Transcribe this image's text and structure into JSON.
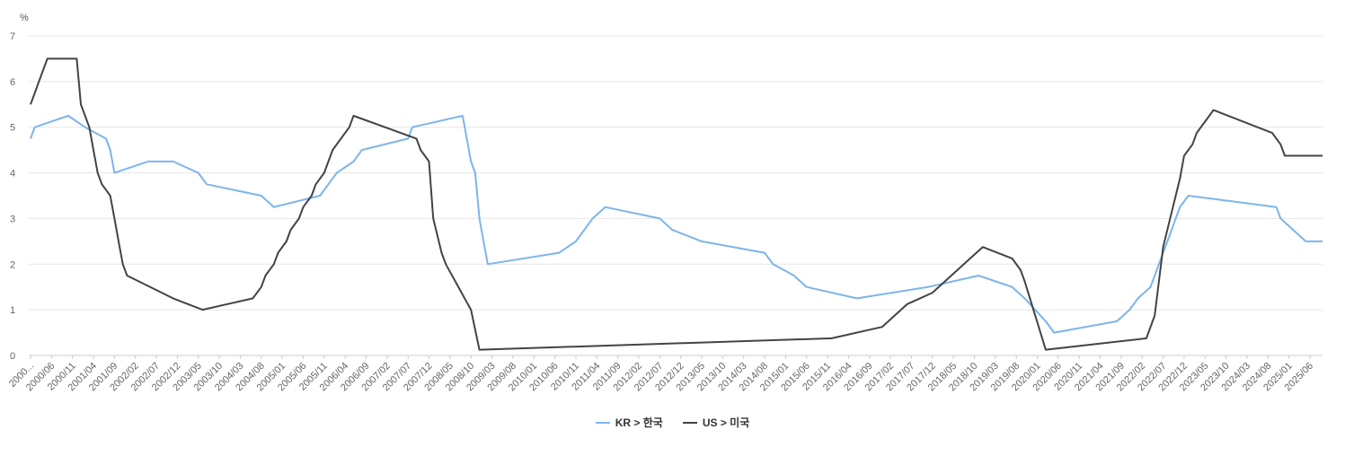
{
  "chart_data": {
    "type": "line",
    "unit_label": "%",
    "ylim": [
      0,
      7
    ],
    "y_ticks": [
      "0",
      "1",
      "2",
      "3",
      "4",
      "5",
      "6",
      "7"
    ],
    "grid": true,
    "legend_position": "bottom-center",
    "x_tick_labels": [
      "2000...",
      "2000/06",
      "2000/11",
      "2001/04",
      "2001/09",
      "2002/02",
      "2002/07",
      "2002/12",
      "2003/05",
      "2003/10",
      "2004/03",
      "2004/08",
      "2005/01",
      "2005/06",
      "2005/11",
      "2006/04",
      "2006/09",
      "2007/02",
      "2007/07",
      "2007/12",
      "2008/05",
      "2008/10",
      "2009/03",
      "2009/08",
      "2010/01",
      "2010/06",
      "2010/11",
      "2011/04",
      "2011/09",
      "2012/02",
      "2012/07",
      "2012/12",
      "2013/05",
      "2013/10",
      "2014/03",
      "2014/08",
      "2015/01",
      "2015/06",
      "2015/11",
      "2016/04",
      "2016/09",
      "2017/02",
      "2017/07",
      "2017/12",
      "2018/05",
      "2018/10",
      "2019/03",
      "2019/08",
      "2020/01",
      "2020/06",
      "2020/11",
      "2021/04",
      "2021/09",
      "2022/02",
      "2022/07",
      "2022/12",
      "2023/05",
      "2023/10",
      "2024/03",
      "2024/08",
      "2025/01",
      "2025/06"
    ],
    "series": [
      {
        "name": "KR > 한국",
        "color": "#7cb5ec",
        "points": [
          [
            "2000-01",
            4.75
          ],
          [
            "2000-02",
            5.0
          ],
          [
            "2000-10",
            5.25
          ],
          [
            "2001-02",
            5.0
          ],
          [
            "2001-07",
            4.75
          ],
          [
            "2001-08",
            4.5
          ],
          [
            "2001-09",
            4.0
          ],
          [
            "2002-05",
            4.25
          ],
          [
            "2002-11",
            4.25
          ],
          [
            "2003-05",
            4.0
          ],
          [
            "2003-07",
            3.75
          ],
          [
            "2004-08",
            3.5
          ],
          [
            "2004-11",
            3.25
          ],
          [
            "2005-10",
            3.5
          ],
          [
            "2005-12",
            3.75
          ],
          [
            "2006-02",
            4.0
          ],
          [
            "2006-06",
            4.25
          ],
          [
            "2006-08",
            4.5
          ],
          [
            "2007-07",
            4.75
          ],
          [
            "2007-08",
            5.0
          ],
          [
            "2008-08",
            5.25
          ],
          [
            "2008-10",
            4.25
          ],
          [
            "2008-11",
            4.0
          ],
          [
            "2008-12",
            3.0
          ],
          [
            "2009-01",
            2.5
          ],
          [
            "2009-02",
            2.0
          ],
          [
            "2010-07",
            2.25
          ],
          [
            "2010-11",
            2.5
          ],
          [
            "2011-01",
            2.75
          ],
          [
            "2011-03",
            3.0
          ],
          [
            "2011-06",
            3.25
          ],
          [
            "2012-07",
            3.0
          ],
          [
            "2012-10",
            2.75
          ],
          [
            "2013-05",
            2.5
          ],
          [
            "2014-08",
            2.25
          ],
          [
            "2014-10",
            2.0
          ],
          [
            "2015-03",
            1.75
          ],
          [
            "2015-06",
            1.5
          ],
          [
            "2016-06",
            1.25
          ],
          [
            "2017-11",
            1.5
          ],
          [
            "2018-11",
            1.75
          ],
          [
            "2019-07",
            1.5
          ],
          [
            "2019-10",
            1.25
          ],
          [
            "2020-03",
            0.75
          ],
          [
            "2020-05",
            0.5
          ],
          [
            "2021-08",
            0.75
          ],
          [
            "2021-11",
            1.0
          ],
          [
            "2022-01",
            1.25
          ],
          [
            "2022-04",
            1.5
          ],
          [
            "2022-05",
            1.75
          ],
          [
            "2022-07",
            2.25
          ],
          [
            "2022-08",
            2.5
          ],
          [
            "2022-10",
            3.0
          ],
          [
            "2022-11",
            3.25
          ],
          [
            "2023-01",
            3.5
          ],
          [
            "2024-10",
            3.25
          ],
          [
            "2024-11",
            3.0
          ],
          [
            "2025-02",
            2.75
          ],
          [
            "2025-05",
            2.5
          ],
          [
            "2025-09",
            2.5
          ]
        ]
      },
      {
        "name": "US > 미국",
        "color": "#434348",
        "points": [
          [
            "2000-01",
            5.5
          ],
          [
            "2000-02",
            5.75
          ],
          [
            "2000-03",
            6.0
          ],
          [
            "2000-05",
            6.5
          ],
          [
            "2000-12",
            6.5
          ],
          [
            "2001-01",
            5.5
          ],
          [
            "2001-03",
            5.0
          ],
          [
            "2001-04",
            4.5
          ],
          [
            "2001-05",
            4.0
          ],
          [
            "2001-06",
            3.75
          ],
          [
            "2001-08",
            3.5
          ],
          [
            "2001-09",
            3.0
          ],
          [
            "2001-10",
            2.5
          ],
          [
            "2001-11",
            2.0
          ],
          [
            "2001-12",
            1.75
          ],
          [
            "2002-11",
            1.25
          ],
          [
            "2003-06",
            1.0
          ],
          [
            "2004-06",
            1.25
          ],
          [
            "2004-08",
            1.5
          ],
          [
            "2004-09",
            1.75
          ],
          [
            "2004-11",
            2.0
          ],
          [
            "2004-12",
            2.25
          ],
          [
            "2005-02",
            2.5
          ],
          [
            "2005-03",
            2.75
          ],
          [
            "2005-05",
            3.0
          ],
          [
            "2005-06",
            3.25
          ],
          [
            "2005-08",
            3.5
          ],
          [
            "2005-09",
            3.75
          ],
          [
            "2005-11",
            4.0
          ],
          [
            "2005-12",
            4.25
          ],
          [
            "2006-01",
            4.5
          ],
          [
            "2006-03",
            4.75
          ],
          [
            "2006-05",
            5.0
          ],
          [
            "2006-06",
            5.25
          ],
          [
            "2007-09",
            4.75
          ],
          [
            "2007-10",
            4.5
          ],
          [
            "2007-12",
            4.25
          ],
          [
            "2008-01",
            3.0
          ],
          [
            "2008-03",
            2.25
          ],
          [
            "2008-04",
            2.0
          ],
          [
            "2008-10",
            1.0
          ],
          [
            "2008-12",
            0.125
          ],
          [
            "2015-12",
            0.375
          ],
          [
            "2016-12",
            0.625
          ],
          [
            "2017-03",
            0.875
          ],
          [
            "2017-06",
            1.125
          ],
          [
            "2017-12",
            1.375
          ],
          [
            "2018-03",
            1.625
          ],
          [
            "2018-06",
            1.875
          ],
          [
            "2018-09",
            2.125
          ],
          [
            "2018-12",
            2.375
          ],
          [
            "2019-07",
            2.125
          ],
          [
            "2019-09",
            1.875
          ],
          [
            "2019-10",
            1.625
          ],
          [
            "2020-03",
            0.125
          ],
          [
            "2022-03",
            0.375
          ],
          [
            "2022-05",
            0.875
          ],
          [
            "2022-06",
            1.625
          ],
          [
            "2022-07",
            2.375
          ],
          [
            "2022-09",
            3.125
          ],
          [
            "2022-11",
            3.875
          ],
          [
            "2022-12",
            4.375
          ],
          [
            "2023-02",
            4.625
          ],
          [
            "2023-03",
            4.875
          ],
          [
            "2023-05",
            5.125
          ],
          [
            "2023-07",
            5.375
          ],
          [
            "2024-09",
            4.875
          ],
          [
            "2024-11",
            4.625
          ],
          [
            "2024-12",
            4.375
          ],
          [
            "2025-09",
            4.375
          ]
        ]
      }
    ]
  }
}
